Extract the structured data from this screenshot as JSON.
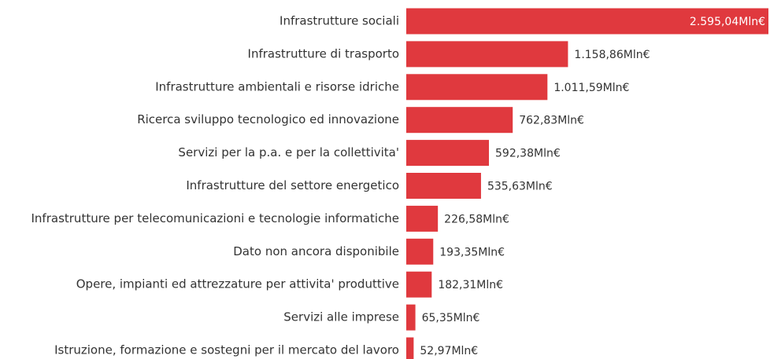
{
  "chart_data": {
    "type": "bar",
    "orientation": "horizontal",
    "color": "#e0393e",
    "categories": [
      "Infrastrutture sociali",
      "Infrastrutture di trasporto",
      "Infrastrutture ambientali e risorse idriche",
      "Ricerca sviluppo tecnologico ed innovazione",
      "Servizi per la p.a. e per la collettivita'",
      "Infrastrutture del settore energetico",
      "Infrastrutture per telecomunicazioni e tecnologie informatiche",
      "Dato non ancora disponibile",
      "Opere, impianti ed attrezzature per attivita' produttive",
      "Servizi alle imprese",
      "Istruzione, formazione e sostegni per il mercato del lavoro"
    ],
    "values": [
      2595.04,
      1158.86,
      1011.59,
      762.83,
      592.38,
      535.63,
      226.58,
      193.35,
      182.31,
      65.35,
      52.97
    ],
    "value_labels": [
      "2.595,04Mln€",
      "1.158,86Mln€",
      "1.011,59Mln€",
      "762,83Mln€",
      "592,38Mln€",
      "535,63Mln€",
      "226,58Mln€",
      "193,35Mln€",
      "182,31Mln€",
      "65,35Mln€",
      "52,97Mln€"
    ]
  }
}
